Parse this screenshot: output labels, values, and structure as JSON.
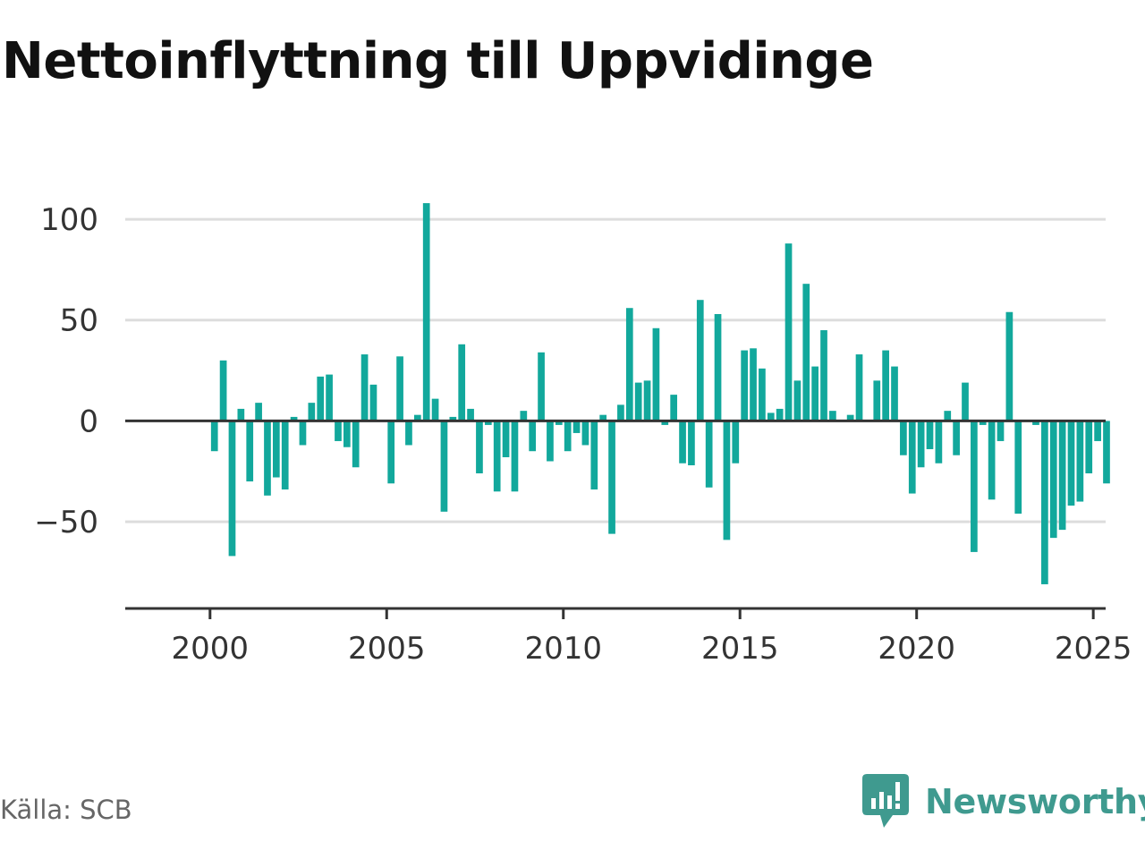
{
  "title": "Nettoinflyttning till Uppvidinge",
  "source": "Källa: SCB",
  "brand": {
    "name": "Newsworthy",
    "icon": "newsworthy-logo-icon",
    "color": "#3f9a8f"
  },
  "colors": {
    "bar": "#12a89c",
    "grid": "#dddddd",
    "zero_line": "#333333",
    "axis": "#333333"
  },
  "chart_data": {
    "type": "bar",
    "title": "Nettoinflyttning till Uppvidinge",
    "xlabel": "",
    "ylabel": "",
    "ylim": [
      -93,
      120
    ],
    "xlim": [
      1997.6,
      2025.35
    ],
    "yticks": [
      -50,
      0,
      50,
      100
    ],
    "ytick_labels": [
      "−50",
      "0",
      "50",
      "100"
    ],
    "xticks": [
      2000,
      2005,
      2010,
      2015,
      2020,
      2025
    ],
    "xtick_labels": [
      "2000",
      "2005",
      "2010",
      "2015",
      "2020",
      "2025"
    ],
    "grid": true,
    "frequency": "quarterly",
    "x": [
      "2000-Q1",
      "2000-Q2",
      "2000-Q3",
      "2000-Q4",
      "2001-Q1",
      "2001-Q2",
      "2001-Q3",
      "2001-Q4",
      "2002-Q1",
      "2002-Q2",
      "2002-Q3",
      "2002-Q4",
      "2003-Q1",
      "2003-Q2",
      "2003-Q3",
      "2003-Q4",
      "2004-Q1",
      "2004-Q2",
      "2004-Q3",
      "2004-Q4",
      "2005-Q1",
      "2005-Q2",
      "2005-Q3",
      "2005-Q4",
      "2006-Q1",
      "2006-Q2",
      "2006-Q3",
      "2006-Q4",
      "2007-Q1",
      "2007-Q2",
      "2007-Q3",
      "2007-Q4",
      "2008-Q1",
      "2008-Q2",
      "2008-Q3",
      "2008-Q4",
      "2009-Q1",
      "2009-Q2",
      "2009-Q3",
      "2009-Q4",
      "2010-Q1",
      "2010-Q2",
      "2010-Q3",
      "2010-Q4",
      "2011-Q1",
      "2011-Q2",
      "2011-Q3",
      "2011-Q4",
      "2012-Q1",
      "2012-Q2",
      "2012-Q3",
      "2012-Q4",
      "2013-Q1",
      "2013-Q2",
      "2013-Q3",
      "2013-Q4",
      "2014-Q1",
      "2014-Q2",
      "2014-Q3",
      "2014-Q4",
      "2015-Q1",
      "2015-Q2",
      "2015-Q3",
      "2015-Q4",
      "2016-Q1",
      "2016-Q2",
      "2016-Q3",
      "2016-Q4",
      "2017-Q1",
      "2017-Q2",
      "2017-Q3",
      "2017-Q4",
      "2018-Q1",
      "2018-Q2",
      "2018-Q3",
      "2018-Q4",
      "2019-Q1",
      "2019-Q2",
      "2019-Q3",
      "2019-Q4",
      "2020-Q1",
      "2020-Q2",
      "2020-Q3",
      "2020-Q4",
      "2021-Q1",
      "2021-Q2",
      "2021-Q3",
      "2021-Q4",
      "2022-Q1",
      "2022-Q2",
      "2022-Q3",
      "2022-Q4",
      "2023-Q1",
      "2023-Q2",
      "2023-Q3",
      "2023-Q4",
      "2024-Q1",
      "2024-Q2",
      "2024-Q3",
      "2024-Q4",
      "2025-Q1",
      "2025-Q2"
    ],
    "values": [
      -15,
      30,
      -67,
      6,
      -30,
      9,
      -37,
      -28,
      -34,
      2,
      -12,
      9,
      22,
      23,
      -10,
      -13,
      -23,
      33,
      18,
      0,
      -31,
      32,
      -12,
      3,
      108,
      11,
      -45,
      2,
      38,
      6,
      -26,
      -2,
      -35,
      -18,
      -35,
      5,
      -15,
      34,
      -20,
      -2,
      -15,
      -6,
      -12,
      -34,
      3,
      -56,
      8,
      56,
      19,
      20,
      46,
      -2,
      13,
      -21,
      -22,
      60,
      -33,
      53,
      -59,
      -21,
      35,
      36,
      26,
      4,
      6,
      88,
      20,
      68,
      27,
      45,
      5,
      0,
      3,
      33,
      0,
      20,
      35,
      27,
      -17,
      -36,
      -23,
      -14,
      -21,
      5,
      -17,
      19,
      -65,
      -2,
      -39,
      -10,
      54,
      -46,
      0,
      -2,
      -81,
      -58,
      -54,
      -42,
      -40,
      -26,
      -10,
      -31
    ]
  }
}
